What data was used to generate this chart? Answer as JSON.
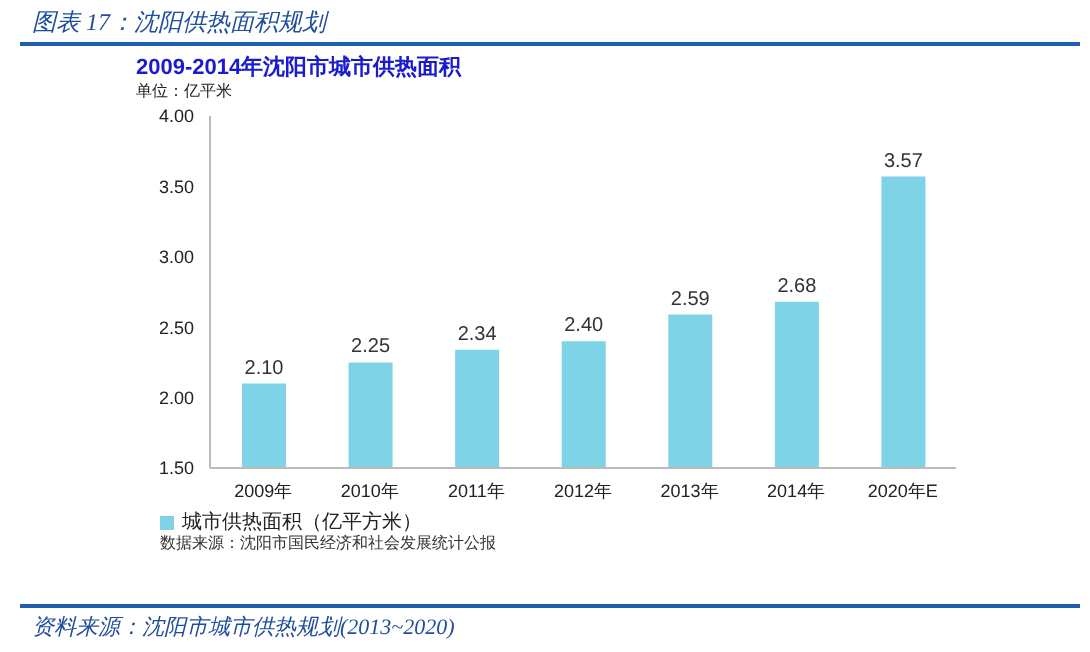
{
  "chart_data": {
    "type": "bar",
    "title": "图表 17：沈阳供热面积规划",
    "subtitle": "2009-2014年沈阳市城市供热面积",
    "ylabel": "单位：亿平米",
    "categories": [
      "2009年",
      "2010年",
      "2011年",
      "2012年",
      "2013年",
      "2014年",
      "2020年E"
    ],
    "series": [
      {
        "name": "城市供热面积（亿平方米）",
        "color": "#7fd3e6",
        "values": [
          2.1,
          2.25,
          2.34,
          2.4,
          2.59,
          2.68,
          3.57
        ],
        "value_labels": [
          "2.10",
          "2.25",
          "2.34",
          "2.40",
          "2.59",
          "2.68",
          "3.57"
        ]
      }
    ],
    "ylim": [
      1.5,
      4
    ],
    "yticks": [
      {
        "value": 1.5,
        "label": "1.50"
      },
      {
        "value": 2,
        "label": "2.00"
      },
      {
        "value": 2.5,
        "label": "2.50"
      },
      {
        "value": 3,
        "label": "3.00"
      },
      {
        "value": 3.5,
        "label": "3.50"
      },
      {
        "value": 4,
        "label": "4.00"
      }
    ],
    "grid": false,
    "legend": "bottom left",
    "annotations": [
      "数据来源：沈阳市国民经济和社会发展统计公报",
      "资料来源：沈阳市城市供热规划(2013~2020)"
    ]
  }
}
